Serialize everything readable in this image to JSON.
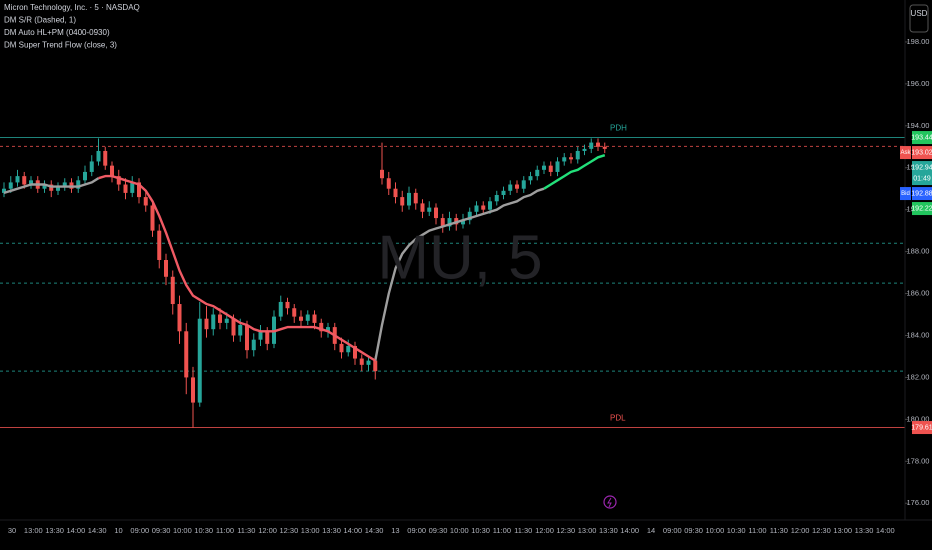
{
  "chart_data": {
    "type": "candlestick",
    "legend_lines": [
      "Micron Technology, Inc. · 5 · NASDAQ",
      "DM S/R (Dashed, 1)",
      "DM Auto HL+PM (0400-0930)",
      "DM Super Trend Flow (close, 3)"
    ],
    "watermark": "MU, 5",
    "currency": "USD",
    "up_color": "#26a69a",
    "down_color": "#ef5350",
    "ylim": [
      175.2,
      200
    ],
    "yticks": [
      {
        "value": 176,
        "label": "176.00"
      },
      {
        "value": 178,
        "label": "178.00"
      },
      {
        "value": 180,
        "label": "180.00"
      },
      {
        "value": 182,
        "label": "182.00"
      },
      {
        "value": 184,
        "label": "184.00"
      },
      {
        "value": 186,
        "label": "186.00"
      },
      {
        "value": 188,
        "label": "188.00"
      },
      {
        "value": 190,
        "label": "190.00"
      },
      {
        "value": 192,
        "label": "192.00"
      },
      {
        "value": 194,
        "label": "194.00"
      },
      {
        "value": 196,
        "label": "196.00"
      },
      {
        "value": 198,
        "label": "198.00"
      }
    ],
    "time_labels": [
      "30",
      "13:00",
      "13:30",
      "14:00",
      "14:30",
      "10",
      "09:00",
      "09:30",
      "10:00",
      "10:30",
      "11:00",
      "11:30",
      "12:00",
      "12:30",
      "13:00",
      "13:30",
      "14:00",
      "14:30",
      "13",
      "09:00",
      "09:30",
      "10:00",
      "10:30",
      "11:00",
      "11:30",
      "12:00",
      "12:30",
      "13:00",
      "13:30",
      "14:00",
      "14",
      "09:00",
      "09:30",
      "10:00",
      "10:30",
      "11:00",
      "11:30",
      "12:00",
      "12:30",
      "13:00",
      "13:30",
      "14:00"
    ],
    "ohlc": [
      [
        190.8,
        191.3,
        190.6,
        191.0
      ],
      [
        191.0,
        191.6,
        190.8,
        191.3
      ],
      [
        191.3,
        191.9,
        191.1,
        191.6
      ],
      [
        191.6,
        191.8,
        191.0,
        191.2
      ],
      [
        191.2,
        191.6,
        191.0,
        191.4
      ],
      [
        191.4,
        191.6,
        190.8,
        191.0
      ],
      [
        191.0,
        191.4,
        190.8,
        191.2
      ],
      [
        191.2,
        191.4,
        190.6,
        190.9
      ],
      [
        190.9,
        191.3,
        190.7,
        191.1
      ],
      [
        191.1,
        191.5,
        190.9,
        191.3
      ],
      [
        191.3,
        191.5,
        190.8,
        191.0
      ],
      [
        191.0,
        191.6,
        190.8,
        191.4
      ],
      [
        191.4,
        192.1,
        191.2,
        191.8
      ],
      [
        191.8,
        192.6,
        191.6,
        192.3
      ],
      [
        192.3,
        193.4,
        192.1,
        192.8
      ],
      [
        192.8,
        193.0,
        191.9,
        192.1
      ],
      [
        192.1,
        192.3,
        191.3,
        191.6
      ],
      [
        191.6,
        191.9,
        190.9,
        191.2
      ],
      [
        191.2,
        191.5,
        190.5,
        190.8
      ],
      [
        190.8,
        191.6,
        190.6,
        191.3
      ],
      [
        191.3,
        191.5,
        190.3,
        190.6
      ],
      [
        190.6,
        190.9,
        189.9,
        190.2
      ],
      [
        190.2,
        190.4,
        188.7,
        189.0
      ],
      [
        189.0,
        189.3,
        187.2,
        187.6
      ],
      [
        187.6,
        187.9,
        186.4,
        186.8
      ],
      [
        186.8,
        187.1,
        185.0,
        185.5
      ],
      [
        185.5,
        185.9,
        183.6,
        184.2
      ],
      [
        184.2,
        184.6,
        181.2,
        182.0
      ],
      [
        182.0,
        182.5,
        179.6,
        180.8
      ],
      [
        180.8,
        185.6,
        180.6,
        184.8
      ],
      [
        184.8,
        185.4,
        183.9,
        184.3
      ],
      [
        184.3,
        185.3,
        184.0,
        185.0
      ],
      [
        185.0,
        185.3,
        184.3,
        184.6
      ],
      [
        184.6,
        185.1,
        184.3,
        184.8
      ],
      [
        184.8,
        185.0,
        183.7,
        184.0
      ],
      [
        184.0,
        184.8,
        183.7,
        184.5
      ],
      [
        184.5,
        184.7,
        182.9,
        183.3
      ],
      [
        183.3,
        184.1,
        183.0,
        183.8
      ],
      [
        183.8,
        184.5,
        183.5,
        184.2
      ],
      [
        184.2,
        184.4,
        183.3,
        183.6
      ],
      [
        183.6,
        185.2,
        183.4,
        184.9
      ],
      [
        184.9,
        185.9,
        184.7,
        185.6
      ],
      [
        185.6,
        185.8,
        185.0,
        185.3
      ],
      [
        185.3,
        185.5,
        184.6,
        184.9
      ],
      [
        184.9,
        185.2,
        184.4,
        184.7
      ],
      [
        184.7,
        185.2,
        184.5,
        185.0
      ],
      [
        185.0,
        185.2,
        184.3,
        184.6
      ],
      [
        184.6,
        184.8,
        183.9,
        184.2
      ],
      [
        184.2,
        184.6,
        183.9,
        184.4
      ],
      [
        184.4,
        184.6,
        183.3,
        183.6
      ],
      [
        183.6,
        183.9,
        182.9,
        183.2
      ],
      [
        183.2,
        183.8,
        183.0,
        183.5
      ],
      [
        183.5,
        183.7,
        182.6,
        182.9
      ],
      [
        182.9,
        183.1,
        182.3,
        182.6
      ],
      [
        182.6,
        183.0,
        182.3,
        182.8
      ],
      [
        182.8,
        183.0,
        181.9,
        182.3
      ],
      [
        191.9,
        193.2,
        191.2,
        191.5
      ],
      [
        191.5,
        191.8,
        190.7,
        191.0
      ],
      [
        191.0,
        191.3,
        190.3,
        190.6
      ],
      [
        190.6,
        190.9,
        189.9,
        190.2
      ],
      [
        190.2,
        191.1,
        190.0,
        190.8
      ],
      [
        190.8,
        191.0,
        190.0,
        190.3
      ],
      [
        190.3,
        190.5,
        189.6,
        189.9
      ],
      [
        189.9,
        190.4,
        189.7,
        190.1
      ],
      [
        190.1,
        190.3,
        189.3,
        189.6
      ],
      [
        189.6,
        189.8,
        188.9,
        189.2
      ],
      [
        189.2,
        189.9,
        189.0,
        189.6
      ],
      [
        189.6,
        189.8,
        189.0,
        189.3
      ],
      [
        189.3,
        189.8,
        189.1,
        189.5
      ],
      [
        189.5,
        190.1,
        189.3,
        189.9
      ],
      [
        189.9,
        190.4,
        189.7,
        190.2
      ],
      [
        190.2,
        190.4,
        189.8,
        190.0
      ],
      [
        190.0,
        190.6,
        189.8,
        190.4
      ],
      [
        190.4,
        190.9,
        190.2,
        190.7
      ],
      [
        190.7,
        191.1,
        190.5,
        190.9
      ],
      [
        190.9,
        191.4,
        190.7,
        191.2
      ],
      [
        191.2,
        191.4,
        190.8,
        191.0
      ],
      [
        191.0,
        191.6,
        190.8,
        191.4
      ],
      [
        191.4,
        191.8,
        191.2,
        191.6
      ],
      [
        191.6,
        192.1,
        191.4,
        191.9
      ],
      [
        191.9,
        192.3,
        191.7,
        192.1
      ],
      [
        192.1,
        192.3,
        191.6,
        191.8
      ],
      [
        191.8,
        192.5,
        191.6,
        192.3
      ],
      [
        192.3,
        192.7,
        192.1,
        192.5
      ],
      [
        192.5,
        192.7,
        192.2,
        192.4
      ],
      [
        192.4,
        193.0,
        192.2,
        192.8
      ],
      [
        192.8,
        193.1,
        192.6,
        192.9
      ],
      [
        192.9,
        193.4,
        192.7,
        193.2
      ],
      [
        193.2,
        193.4,
        192.8,
        193.0
      ],
      [
        193.0,
        193.2,
        192.7,
        192.9
      ]
    ],
    "series": [
      {
        "color": "#9e9e9e",
        "values": [
          190.8,
          190.9,
          191.0,
          191.1,
          191.2,
          191.2,
          191.2,
          191.1,
          191.1,
          191.1,
          191.1,
          191.1,
          191.2,
          191.3,
          191.5,
          null,
          null,
          null,
          null,
          null,
          null,
          null,
          null,
          null,
          null,
          null,
          null,
          null,
          null,
          null,
          null,
          null,
          null,
          null,
          null,
          null,
          null,
          null,
          null,
          null,
          null,
          null,
          null,
          null,
          null,
          null,
          null,
          null,
          null,
          null,
          null,
          null,
          null,
          null,
          null,
          182.8,
          184.5,
          186.0,
          187.2,
          187.9,
          188.3,
          188.6,
          188.8,
          189.0,
          189.1,
          189.2,
          189.3,
          189.4,
          189.5,
          189.6,
          189.7,
          189.8,
          189.9,
          190.0,
          190.2,
          190.3,
          190.4,
          190.6,
          190.7,
          190.9,
          191.0,
          null,
          null,
          null,
          null,
          null,
          null,
          null,
          null,
          null
        ]
      },
      {
        "color": "#f05a64",
        "values": [
          null,
          null,
          null,
          null,
          null,
          null,
          null,
          null,
          null,
          null,
          null,
          null,
          null,
          null,
          191.5,
          191.6,
          191.6,
          191.5,
          191.4,
          191.3,
          191.2,
          190.9,
          190.4,
          189.7,
          188.9,
          188.0,
          187.1,
          186.4,
          185.9,
          185.7,
          185.5,
          185.4,
          185.2,
          185.0,
          184.8,
          184.6,
          184.5,
          184.3,
          184.2,
          184.2,
          184.2,
          184.3,
          184.4,
          184.4,
          184.4,
          184.4,
          184.4,
          184.3,
          184.2,
          184.0,
          183.8,
          183.6,
          183.4,
          183.2,
          183.0,
          182.8,
          null,
          null,
          null,
          null,
          null,
          null,
          null,
          null,
          null,
          null,
          null,
          null,
          null,
          null,
          null,
          null,
          null,
          null,
          null,
          null,
          null,
          null,
          null,
          null,
          null,
          null,
          null,
          null,
          null,
          null,
          null,
          null,
          null,
          null
        ]
      },
      {
        "color": "#22e07a",
        "values": [
          null,
          null,
          null,
          null,
          null,
          null,
          null,
          null,
          null,
          null,
          null,
          null,
          null,
          null,
          null,
          null,
          null,
          null,
          null,
          null,
          null,
          null,
          null,
          null,
          null,
          null,
          null,
          null,
          null,
          null,
          null,
          null,
          null,
          null,
          null,
          null,
          null,
          null,
          null,
          null,
          null,
          null,
          null,
          null,
          null,
          null,
          null,
          null,
          null,
          null,
          null,
          null,
          null,
          null,
          null,
          null,
          null,
          null,
          null,
          null,
          null,
          null,
          null,
          null,
          null,
          null,
          null,
          null,
          null,
          null,
          null,
          null,
          null,
          null,
          null,
          null,
          null,
          null,
          null,
          null,
          191.0,
          191.2,
          191.4,
          191.6,
          191.8,
          191.9,
          192.1,
          192.3,
          192.5,
          192.6
        ]
      }
    ],
    "levels": [
      {
        "value": 193.44,
        "color": "#26a69a",
        "style": "solid",
        "label": "PDH"
      },
      {
        "value": 193.02,
        "color": "#ef5350",
        "style": "dashed"
      },
      {
        "value": 188.4,
        "color": "#26a69a",
        "style": "dashed"
      },
      {
        "value": 186.5,
        "color": "#26a69a",
        "style": "dashed"
      },
      {
        "value": 182.3,
        "color": "#26a69a",
        "style": "dashed"
      },
      {
        "value": 179.61,
        "color": "#ef5350",
        "style": "solid",
        "label": "PDL"
      }
    ],
    "badges": [
      {
        "value": 193.44,
        "color": "#22c55e"
      },
      {
        "value": 193.02,
        "color": "#ef5350",
        "tag": "Ask"
      },
      {
        "value": 192.94,
        "color": "#26a69a",
        "countdown": "01:49"
      },
      {
        "value": 192.88,
        "color": "#2962ff",
        "tag": "Bid"
      },
      {
        "value": 192.22,
        "color": "#22c55e"
      },
      {
        "value": 179.61,
        "color": "#ef5350"
      }
    ]
  }
}
